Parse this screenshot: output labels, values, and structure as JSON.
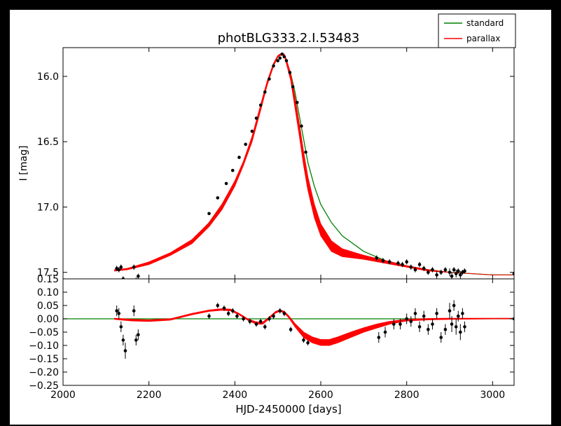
{
  "chart_data": [
    {
      "type": "scatter",
      "panel": "top",
      "title": "photBLG333.2.I.53483",
      "xlabel": "",
      "ylabel": "I [mag]",
      "xlim": [
        2000,
        3050
      ],
      "ylim": [
        17.55,
        15.78
      ],
      "y_inverted": true,
      "grid": false,
      "legend_placement": "top-right",
      "x_ticks": [],
      "y_ticks": [
        {
          "value": 16.0,
          "label": "16.0"
        },
        {
          "value": 16.5,
          "label": "16.5"
        },
        {
          "value": 17.0,
          "label": "17.0"
        },
        {
          "value": 17.5,
          "label": "17.5"
        }
      ],
      "series": [
        {
          "name": "standard",
          "kind": "model-line",
          "color": "#008000",
          "x": [
            2120,
            2150,
            2200,
            2250,
            2300,
            2340,
            2370,
            2400,
            2420,
            2440,
            2460,
            2475,
            2490,
            2500,
            2505,
            2510,
            2515,
            2520,
            2530,
            2540,
            2550,
            2560,
            2570,
            2585,
            2600,
            2625,
            2650,
            2700,
            2750,
            2800,
            2850,
            2900,
            2950,
            3000,
            3050
          ],
          "y": [
            17.49,
            17.47,
            17.43,
            17.36,
            17.26,
            17.12,
            16.98,
            16.81,
            16.66,
            16.48,
            16.25,
            16.06,
            15.92,
            15.85,
            15.84,
            15.83,
            15.84,
            15.88,
            15.98,
            16.12,
            16.3,
            16.48,
            16.66,
            16.84,
            16.98,
            17.12,
            17.22,
            17.34,
            17.41,
            17.45,
            17.48,
            17.5,
            17.51,
            17.52,
            17.52
          ]
        },
        {
          "name": "parallax",
          "kind": "model-band",
          "color": "#ff0000",
          "x": [
            2120,
            2150,
            2200,
            2250,
            2300,
            2340,
            2370,
            2400,
            2420,
            2440,
            2460,
            2475,
            2490,
            2500,
            2505,
            2510,
            2515,
            2520,
            2530,
            2540,
            2550,
            2560,
            2570,
            2585,
            2600,
            2625,
            2650,
            2700,
            2750,
            2800,
            2850,
            2900,
            2950,
            3000,
            3050
          ],
          "y_low": [
            17.49,
            17.48,
            17.44,
            17.37,
            17.28,
            17.15,
            17.02,
            16.84,
            16.68,
            16.5,
            16.26,
            16.07,
            15.92,
            15.85,
            15.84,
            15.83,
            15.84,
            15.9,
            16.03,
            16.24,
            16.45,
            16.68,
            16.87,
            17.08,
            17.22,
            17.34,
            17.38,
            17.4,
            17.43,
            17.46,
            17.49,
            17.5,
            17.51,
            17.52,
            17.52
          ],
          "y_high": [
            17.48,
            17.47,
            17.42,
            17.35,
            17.25,
            17.12,
            16.98,
            16.8,
            16.65,
            16.46,
            16.22,
            16.04,
            15.9,
            15.84,
            15.83,
            15.82,
            15.83,
            15.87,
            15.98,
            16.16,
            16.36,
            16.58,
            16.77,
            16.98,
            17.13,
            17.26,
            17.32,
            17.37,
            17.41,
            17.45,
            17.48,
            17.5,
            17.51,
            17.52,
            17.52
          ]
        },
        {
          "name": "",
          "kind": "data-points",
          "color": "#000000",
          "x": [
            2125,
            2130,
            2135,
            2140,
            2145,
            2165,
            2170,
            2175,
            2340,
            2360,
            2380,
            2395,
            2410,
            2425,
            2440,
            2450,
            2460,
            2470,
            2480,
            2490,
            2500,
            2505,
            2510,
            2515,
            2520,
            2528,
            2535,
            2545,
            2555,
            2565,
            2730,
            2745,
            2760,
            2780,
            2790,
            2800,
            2810,
            2820,
            2830,
            2840,
            2850,
            2860,
            2870,
            2880,
            2890,
            2900,
            2905,
            2910,
            2915,
            2920,
            2925,
            2930,
            2935,
            3050
          ],
          "y": [
            17.47,
            17.48,
            17.46,
            17.55,
            17.6,
            17.46,
            17.56,
            17.53,
            17.05,
            16.93,
            16.82,
            16.72,
            16.62,
            16.52,
            16.42,
            16.32,
            16.22,
            16.12,
            16.02,
            15.92,
            15.88,
            15.86,
            15.83,
            15.85,
            15.88,
            15.97,
            16.08,
            16.2,
            16.38,
            16.58,
            17.39,
            17.41,
            17.42,
            17.43,
            17.44,
            17.42,
            17.46,
            17.48,
            17.44,
            17.47,
            17.5,
            17.48,
            17.52,
            17.5,
            17.48,
            17.5,
            17.53,
            17.48,
            17.51,
            17.49,
            17.52,
            17.5,
            17.49,
            17.51
          ],
          "yerr": [
            0.02,
            0.02,
            0.02,
            0.02,
            0.03,
            0.02,
            0.02,
            0.02,
            0.01,
            0.01,
            0.01,
            0.01,
            0.01,
            0.01,
            0.01,
            0.01,
            0.01,
            0.01,
            0.01,
            0.01,
            0.01,
            0.01,
            0.01,
            0.01,
            0.01,
            0.01,
            0.01,
            0.01,
            0.01,
            0.01,
            0.02,
            0.02,
            0.02,
            0.02,
            0.02,
            0.02,
            0.02,
            0.02,
            0.02,
            0.02,
            0.02,
            0.02,
            0.03,
            0.02,
            0.02,
            0.03,
            0.03,
            0.02,
            0.03,
            0.02,
            0.03,
            0.02,
            0.02,
            0.02
          ]
        }
      ]
    },
    {
      "type": "scatter",
      "panel": "bottom",
      "title": "",
      "xlabel": "HJD-2450000 [days]",
      "ylabel": "",
      "xlim": [
        2000,
        3050
      ],
      "ylim": [
        -0.25,
        0.15
      ],
      "grid": false,
      "x_ticks": [
        {
          "value": 2000,
          "label": "2000"
        },
        {
          "value": 2200,
          "label": "2200"
        },
        {
          "value": 2400,
          "label": "2400"
        },
        {
          "value": 2600,
          "label": "2600"
        },
        {
          "value": 2800,
          "label": "2800"
        },
        {
          "value": 3000,
          "label": "3000"
        }
      ],
      "y_ticks": [
        {
          "value": 0.15,
          "label": "0.15"
        },
        {
          "value": 0.1,
          "label": "0.10"
        },
        {
          "value": 0.05,
          "label": "0.05"
        },
        {
          "value": 0.0,
          "label": "0.00"
        },
        {
          "value": -0.05,
          "label": "−0.05"
        },
        {
          "value": -0.1,
          "label": "−0.10"
        },
        {
          "value": -0.15,
          "label": "−0.15"
        },
        {
          "value": -0.2,
          "label": "−0.20"
        },
        {
          "value": -0.25,
          "label": "−0.25"
        }
      ],
      "series": [
        {
          "name": "standard",
          "kind": "model-line",
          "color": "#008000",
          "x": [
            2000,
            3050
          ],
          "y": [
            0.0,
            0.0
          ]
        },
        {
          "name": "parallax",
          "kind": "model-band",
          "color": "#ff0000",
          "x": [
            2120,
            2160,
            2200,
            2250,
            2300,
            2340,
            2370,
            2390,
            2410,
            2430,
            2450,
            2465,
            2480,
            2495,
            2505,
            2515,
            2525,
            2540,
            2560,
            2580,
            2600,
            2620,
            2640,
            2670,
            2700,
            2730,
            2760,
            2800,
            2850,
            2900,
            2950,
            3000,
            3050
          ],
          "y_low": [
            -0.002,
            -0.008,
            -0.01,
            -0.005,
            0.015,
            0.028,
            0.032,
            0.03,
            0.015,
            -0.005,
            -0.02,
            -0.02,
            0.0,
            0.022,
            0.028,
            0.022,
            0.005,
            -0.03,
            -0.07,
            -0.09,
            -0.1,
            -0.1,
            -0.09,
            -0.07,
            -0.05,
            -0.035,
            -0.02,
            -0.008,
            -0.004,
            -0.002,
            -0.001,
            0.0,
            0.0
          ],
          "y_high": [
            0.002,
            -0.002,
            -0.004,
            0.0,
            0.02,
            0.033,
            0.038,
            0.036,
            0.02,
            0.0,
            -0.012,
            -0.012,
            0.006,
            0.028,
            0.034,
            0.028,
            0.012,
            -0.018,
            -0.05,
            -0.068,
            -0.078,
            -0.078,
            -0.068,
            -0.05,
            -0.034,
            -0.02,
            -0.01,
            -0.002,
            0.001,
            0.002,
            0.002,
            0.002,
            0.002
          ]
        },
        {
          "name": "",
          "kind": "data-points",
          "color": "#000000",
          "x": [
            2125,
            2130,
            2135,
            2140,
            2145,
            2165,
            2170,
            2175,
            2340,
            2360,
            2375,
            2385,
            2395,
            2405,
            2420,
            2435,
            2450,
            2460,
            2470,
            2480,
            2490,
            2505,
            2515,
            2530,
            2560,
            2570,
            2735,
            2750,
            2770,
            2785,
            2800,
            2810,
            2820,
            2830,
            2840,
            2850,
            2860,
            2870,
            2880,
            2890,
            2900,
            2905,
            2910,
            2915,
            2920,
            2925,
            2930,
            2935,
            3050
          ],
          "y": [
            0.03,
            0.02,
            -0.03,
            -0.08,
            -0.12,
            0.03,
            -0.08,
            -0.06,
            0.01,
            0.05,
            0.04,
            0.02,
            0.03,
            0.01,
            0.0,
            -0.01,
            -0.02,
            -0.01,
            -0.03,
            0.0,
            0.01,
            0.03,
            0.02,
            -0.04,
            -0.08,
            -0.09,
            -0.07,
            -0.05,
            -0.02,
            -0.02,
            0.0,
            -0.01,
            0.02,
            -0.03,
            0.01,
            -0.04,
            -0.02,
            0.02,
            -0.07,
            -0.04,
            0.03,
            -0.02,
            0.05,
            -0.03,
            0.01,
            -0.05,
            0.02,
            -0.03,
            0.0
          ],
          "yerr": [
            0.02,
            0.02,
            0.02,
            0.02,
            0.03,
            0.02,
            0.02,
            0.02,
            0.01,
            0.01,
            0.01,
            0.01,
            0.01,
            0.01,
            0.01,
            0.01,
            0.01,
            0.01,
            0.01,
            0.01,
            0.01,
            0.01,
            0.01,
            0.01,
            0.01,
            0.01,
            0.02,
            0.02,
            0.02,
            0.02,
            0.02,
            0.02,
            0.02,
            0.02,
            0.02,
            0.02,
            0.02,
            0.02,
            0.02,
            0.02,
            0.03,
            0.03,
            0.02,
            0.03,
            0.02,
            0.03,
            0.02,
            0.02,
            0.02
          ]
        }
      ]
    }
  ],
  "legend": {
    "entries": [
      {
        "label": "standard",
        "color": "#008000"
      },
      {
        "label": "parallax",
        "color": "#ff0000"
      }
    ]
  }
}
